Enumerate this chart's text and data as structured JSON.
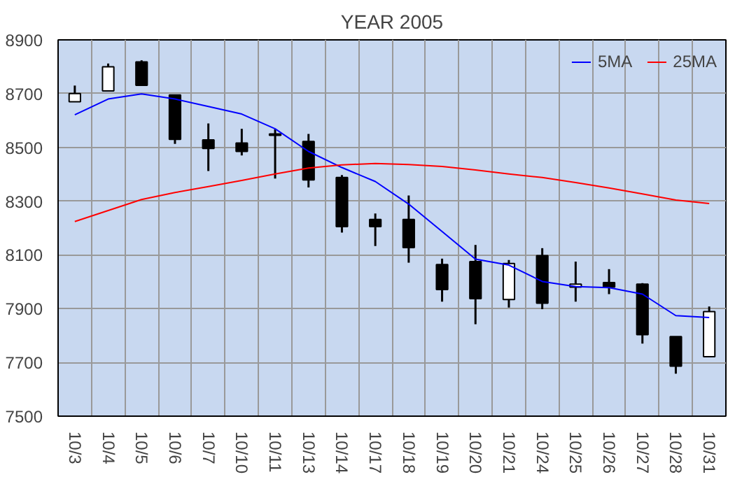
{
  "chart_data": {
    "type": "candlestick",
    "title": "YEAR 2005",
    "categories": [
      "10/3",
      "10/4",
      "10/5",
      "10/6",
      "10/7",
      "10/10",
      "10/11",
      "10/13",
      "10/14",
      "10/17",
      "10/18",
      "10/19",
      "10/20",
      "10/21",
      "10/24",
      "10/25",
      "10/26",
      "10/27",
      "10/28",
      "10/31"
    ],
    "ohlc": [
      [
        8670,
        8730,
        8670,
        8700
      ],
      [
        8710,
        8812,
        8708,
        8800
      ],
      [
        8818,
        8824,
        8730,
        8731
      ],
      [
        8695,
        8697,
        8513,
        8530
      ],
      [
        8528,
        8589,
        8412,
        8496
      ],
      [
        8516,
        8569,
        8470,
        8485
      ],
      [
        8550,
        8567,
        8384,
        8545
      ],
      [
        8522,
        8550,
        8351,
        8379
      ],
      [
        8388,
        8397,
        8183,
        8205
      ],
      [
        8232,
        8254,
        8133,
        8205
      ],
      [
        8232,
        8321,
        8071,
        8127
      ],
      [
        8064,
        8086,
        7926,
        7971
      ],
      [
        8075,
        8137,
        7842,
        7937
      ],
      [
        7934,
        8081,
        7904,
        8068
      ],
      [
        8097,
        8125,
        7898,
        7920
      ],
      [
        7980,
        8075,
        7926,
        7991
      ],
      [
        7997,
        8047,
        7954,
        7980
      ],
      [
        7991,
        7995,
        7770,
        7803
      ],
      [
        7796,
        7796,
        7658,
        7686
      ],
      [
        7721,
        7908,
        7721,
        7889
      ]
    ],
    "series": [
      {
        "name": "5MA",
        "type": "line",
        "color": "#0000ff",
        "values": [
          8621,
          8680,
          8699,
          8680,
          8652,
          8624,
          8569,
          8485,
          8425,
          8373,
          8289,
          8187,
          8084,
          8062,
          8001,
          7982,
          7978,
          7954,
          7874,
          7867
        ]
      },
      {
        "name": "25MA",
        "type": "line",
        "color": "#ff0000",
        "values": [
          8224,
          8265,
          8306,
          8332,
          8354,
          8377,
          8401,
          8423,
          8435,
          8440,
          8436,
          8429,
          8416,
          8401,
          8388,
          8369,
          8349,
          8327,
          8304,
          8291
        ]
      }
    ],
    "ylim": [
      7500,
      8900
    ],
    "yticks": [
      7500,
      7700,
      7900,
      8100,
      8300,
      8500,
      8700,
      8900
    ],
    "grid": true,
    "legend": "top right"
  }
}
